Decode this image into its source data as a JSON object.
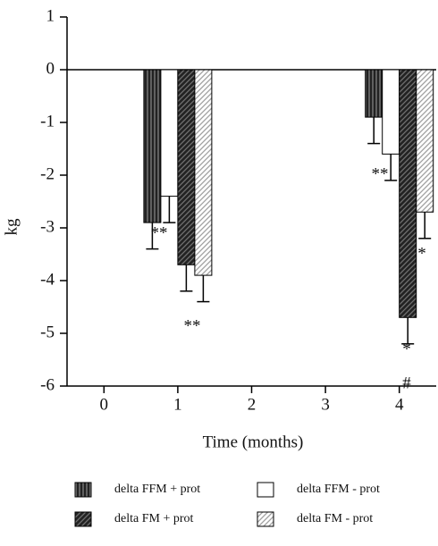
{
  "chart_data": {
    "type": "bar",
    "x_label": "Time (months)",
    "y_label": "kg",
    "x": [
      1,
      4
    ],
    "series": [
      {
        "name": "delta FFM + prot",
        "color": "#222222",
        "hatch": "vertical",
        "hatch_color": "#888888",
        "values": [
          -2.9,
          -0.9
        ],
        "errors": [
          0.5,
          0.5
        ]
      },
      {
        "name": "delta FFM - prot",
        "color": "#ffffff",
        "hatch": "none",
        "hatch_color": "#ffffff",
        "values": [
          -2.4,
          -1.6
        ],
        "errors": [
          0.5,
          0.5
        ]
      },
      {
        "name": "delta FM + prot",
        "color": "#222222",
        "hatch": "diagonal",
        "hatch_color": "#777777",
        "values": [
          -3.7,
          -4.7
        ],
        "errors": [
          0.5,
          0.5
        ]
      },
      {
        "name": "delta FM - prot",
        "color": "#ffffff",
        "hatch": "diagonal",
        "hatch_color": "#999999",
        "values": [
          -3.9,
          -2.7
        ],
        "errors": [
          0.5,
          0.5
        ]
      }
    ],
    "annotations": [
      "**",
      "**",
      "**",
      "*",
      "#",
      "*"
    ],
    "xlim": [
      -0.5,
      4.5
    ],
    "xticks": [
      0,
      1,
      2,
      3,
      4
    ],
    "ylim": [
      -6,
      1
    ],
    "yticks": [
      -6,
      -5,
      -4,
      -3,
      -2,
      -1,
      0,
      1
    ],
    "legend": "bottom"
  }
}
